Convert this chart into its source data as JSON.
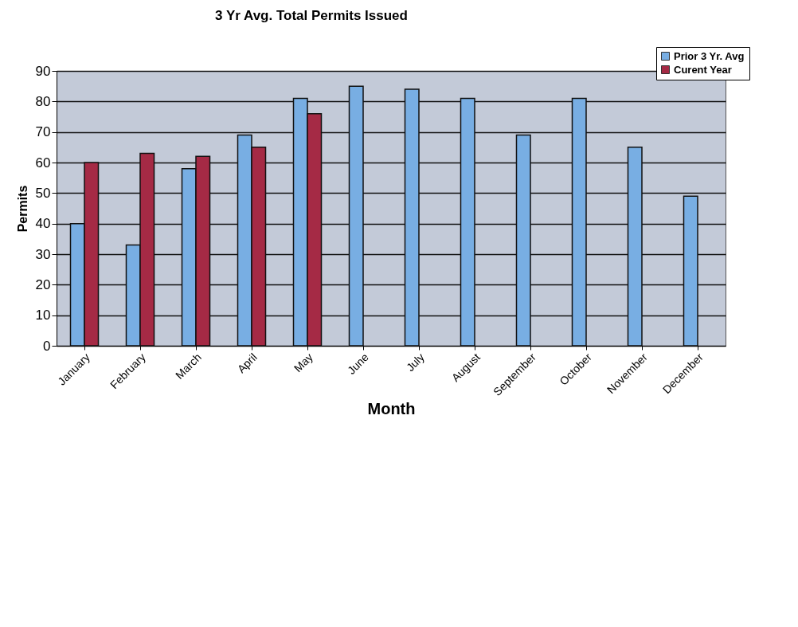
{
  "chart_data": {
    "type": "bar",
    "title": "3 Yr Avg. Total Permits Issued",
    "xlabel": "Month",
    "ylabel": "Permits",
    "categories": [
      "January",
      "February",
      "March",
      "April",
      "May",
      "June",
      "July",
      "August",
      "September",
      "October",
      "November",
      "December"
    ],
    "series": [
      {
        "name": "Prior 3 Yr. Avg",
        "color": "#78aee3",
        "values": [
          40,
          33,
          58,
          69,
          81,
          85,
          84,
          81,
          69,
          81,
          65,
          49
        ]
      },
      {
        "name": "Curent Year",
        "color": "#a52a45",
        "values": [
          60,
          63,
          62,
          65,
          76,
          null,
          null,
          null,
          null,
          null,
          null,
          null
        ]
      }
    ],
    "ylim": [
      0,
      90
    ],
    "yticks": [
      0,
      10,
      20,
      30,
      40,
      50,
      60,
      70,
      80,
      90
    ],
    "grid": "y",
    "legend": "top right"
  }
}
